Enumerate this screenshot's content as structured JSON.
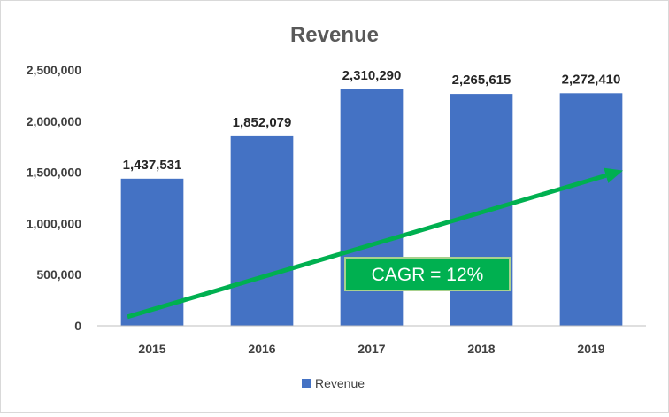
{
  "chart_data": {
    "type": "bar",
    "title": "Revenue",
    "categories": [
      "2015",
      "2016",
      "2017",
      "2018",
      "2019"
    ],
    "series": [
      {
        "name": "Revenue",
        "values": [
          1437531,
          1852079,
          2310290,
          2265615,
          2272410
        ],
        "value_labels": [
          "1,437,531",
          "1,852,079",
          "2,310,290",
          "2,265,615",
          "2,272,410"
        ],
        "color": "#4472c4"
      }
    ],
    "ylim": [
      0,
      2500000
    ],
    "yticks": [
      0,
      500000,
      1000000,
      1500000,
      2000000,
      2500000
    ],
    "ytick_labels": [
      "0",
      "500,000",
      "1,000,000",
      "1,500,000",
      "2,000,000",
      "2,500,000"
    ],
    "grid": false,
    "legend_position": "bottom",
    "annotation": {
      "text": "CAGR = 12%",
      "color": "#00b050",
      "arrow_start": 200000,
      "arrow_end": 1500000
    }
  },
  "colors": {
    "frame": "#d9d9d9",
    "axis": "#bfbfbf"
  }
}
